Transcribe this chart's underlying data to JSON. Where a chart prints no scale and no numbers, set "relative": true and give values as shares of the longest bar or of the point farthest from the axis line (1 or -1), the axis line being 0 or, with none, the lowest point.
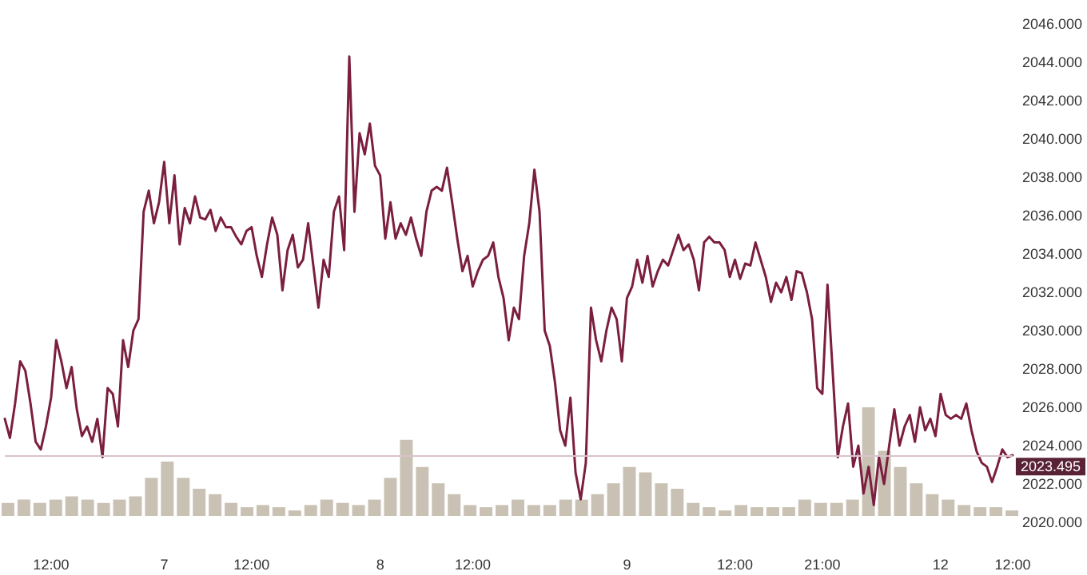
{
  "chart_data": [
    {
      "type": "line",
      "marker": "none",
      "color": "#7b1e3f",
      "categories": [
        null,
        null,
        null,
        null,
        null,
        null,
        null,
        null,
        null,
        "12:00",
        null,
        null,
        null,
        null,
        null,
        null,
        null,
        null,
        null,
        null,
        null,
        null,
        null,
        null,
        null,
        null,
        null,
        null,
        null,
        null,
        null,
        "7",
        null,
        null,
        null,
        null,
        null,
        null,
        null,
        null,
        null,
        null,
        null,
        null,
        null,
        null,
        null,
        null,
        "12:00",
        null,
        null,
        null,
        null,
        null,
        null,
        null,
        null,
        null,
        null,
        null,
        null,
        null,
        null,
        null,
        null,
        null,
        null,
        null,
        null,
        null,
        null,
        null,
        null,
        "8",
        null,
        null,
        null,
        null,
        null,
        null,
        null,
        null,
        null,
        null,
        null,
        null,
        null,
        null,
        null,
        null,
        null,
        "12:00",
        null,
        null,
        null,
        null,
        null,
        null,
        null,
        null,
        null,
        null,
        null,
        null,
        null,
        null,
        null,
        null,
        null,
        null,
        null,
        null,
        null,
        null,
        null,
        null,
        null,
        null,
        null,
        null,
        null,
        "9",
        null,
        null,
        null,
        null,
        null,
        null,
        null,
        null,
        null,
        null,
        null,
        null,
        null,
        null,
        null,
        null,
        null,
        null,
        null,
        null,
        "12:00",
        null,
        null,
        null,
        null,
        null,
        null,
        null,
        null,
        null,
        null,
        null,
        null,
        null,
        null,
        null,
        null,
        "21:00",
        null,
        null,
        null,
        null,
        null,
        null,
        null,
        null,
        null,
        null,
        null,
        null,
        null,
        null,
        null,
        null,
        null,
        null,
        null,
        null,
        null,
        null,
        "12",
        null,
        null,
        null,
        null,
        null,
        null,
        null,
        null,
        null,
        null,
        null,
        null,
        null,
        "12:00"
      ],
      "values": [
        2025.4,
        2024.4,
        2026.2,
        2028.4,
        2027.9,
        2026.2,
        2024.2,
        2023.8,
        2025.0,
        2026.5,
        2029.5,
        2028.4,
        2027.0,
        2028.1,
        2025.9,
        2024.5,
        2025.0,
        2024.2,
        2025.4,
        2023.4,
        2027.0,
        2026.7,
        2025.0,
        2029.5,
        2028.1,
        2030.0,
        2030.6,
        2036.2,
        2037.3,
        2035.6,
        2036.7,
        2038.8,
        2035.6,
        2038.1,
        2034.5,
        2036.4,
        2035.6,
        2037.0,
        2035.9,
        2035.8,
        2036.3,
        2035.2,
        2035.9,
        2035.4,
        2035.4,
        2034.9,
        2034.5,
        2035.2,
        2035.4,
        2033.9,
        2032.8,
        2034.5,
        2035.9,
        2035.0,
        2032.1,
        2034.2,
        2035.0,
        2033.3,
        2033.7,
        2035.6,
        2033.4,
        2031.2,
        2033.7,
        2032.8,
        2036.2,
        2037.0,
        2034.2,
        2044.3,
        2036.2,
        2040.3,
        2039.2,
        2040.8,
        2038.6,
        2038.1,
        2034.8,
        2036.7,
        2034.8,
        2035.6,
        2035.0,
        2035.9,
        2034.8,
        2033.9,
        2036.2,
        2037.3,
        2037.5,
        2037.3,
        2038.5,
        2036.7,
        2034.8,
        2033.1,
        2033.9,
        2032.3,
        2033.1,
        2033.7,
        2033.9,
        2034.6,
        2032.8,
        2031.7,
        2029.5,
        2031.2,
        2030.6,
        2033.9,
        2035.6,
        2038.4,
        2036.2,
        2030.0,
        2029.2,
        2027.3,
        2024.8,
        2024.0,
        2026.5,
        2022.6,
        2021.2,
        2023.1,
        2031.2,
        2029.5,
        2028.4,
        2030.0,
        2031.2,
        2030.6,
        2028.4,
        2031.7,
        2032.3,
        2033.7,
        2032.5,
        2033.9,
        2032.3,
        2033.1,
        2033.7,
        2033.4,
        2034.2,
        2035.0,
        2034.2,
        2034.5,
        2033.7,
        2032.1,
        2034.6,
        2034.9,
        2034.6,
        2034.6,
        2034.2,
        2032.8,
        2033.7,
        2032.7,
        2033.5,
        2033.4,
        2034.6,
        2033.7,
        2032.8,
        2031.5,
        2032.5,
        2032.0,
        2032.8,
        2031.6,
        2033.1,
        2033.0,
        2032.0,
        2030.6,
        2027.0,
        2026.7,
        2032.4,
        2027.9,
        2023.4,
        2025.0,
        2026.2,
        2022.9,
        2024.0,
        2021.5,
        2022.9,
        2020.9,
        2023.4,
        2022.0,
        2024.0,
        2025.9,
        2024.0,
        2025.0,
        2025.6,
        2024.2,
        2026.0,
        2024.8,
        2025.4,
        2024.5,
        2026.7,
        2025.6,
        2025.4,
        2025.6,
        2025.4,
        2026.2,
        2024.8,
        2023.7,
        2023.1,
        2022.9,
        2022.1,
        2022.9,
        2023.8,
        2023.4,
        2023.5
      ],
      "ylim": [
        2020,
        2046
      ],
      "yticks": [
        {
          "value": 2020,
          "label": "2020.000"
        },
        {
          "value": 2022,
          "label": "2022.000"
        },
        {
          "value": 2024,
          "label": "2024.000"
        },
        {
          "value": 2026,
          "label": "2026.000"
        },
        {
          "value": 2028,
          "label": "2028.000"
        },
        {
          "value": 2030,
          "label": "2030.000"
        },
        {
          "value": 2032,
          "label": "2032.000"
        },
        {
          "value": 2034,
          "label": "2034.000"
        },
        {
          "value": 2036,
          "label": "2036.000"
        },
        {
          "value": 2038,
          "label": "2038.000"
        },
        {
          "value": 2040,
          "label": "2040.000"
        },
        {
          "value": 2042,
          "label": "2042.000"
        },
        {
          "value": 2044,
          "label": "2044.000"
        },
        {
          "value": 2046,
          "label": "2046.000"
        }
      ],
      "ref_lines": [
        {
          "axis": "y",
          "value": 2023.495,
          "label": "2023.495",
          "color": "#d9c3cb"
        }
      ]
    },
    {
      "type": "bar",
      "relative": true,
      "color": "#c9c1b3",
      "categories": [
        null,
        null,
        null,
        null,
        null,
        null,
        null,
        null,
        null,
        null,
        null,
        null,
        null,
        null,
        null,
        null,
        null,
        null,
        null,
        null,
        null,
        null,
        null,
        null,
        null,
        null,
        null,
        null,
        null,
        null,
        null,
        null,
        null,
        null,
        null,
        null,
        null,
        null,
        null,
        null,
        null,
        null,
        null,
        null,
        null,
        null,
        null,
        null,
        null,
        null,
        null,
        null,
        null,
        null,
        null,
        null,
        null,
        null,
        null,
        null,
        null,
        null,
        null,
        null
      ],
      "values": [
        0.12,
        0.15,
        0.12,
        0.15,
        0.18,
        0.15,
        0.12,
        0.15,
        0.18,
        0.35,
        0.5,
        0.35,
        0.25,
        0.2,
        0.12,
        0.08,
        0.1,
        0.08,
        0.05,
        0.1,
        0.15,
        0.12,
        0.1,
        0.15,
        0.35,
        0.7,
        0.45,
        0.3,
        0.2,
        0.1,
        0.08,
        0.1,
        0.15,
        0.1,
        0.1,
        0.15,
        0.15,
        0.2,
        0.3,
        0.45,
        0.4,
        0.3,
        0.25,
        0.12,
        0.08,
        0.05,
        0.1,
        0.08,
        0.08,
        0.08,
        0.15,
        0.12,
        0.12,
        0.15,
        1,
        0.6,
        0.45,
        0.3,
        0.2,
        0.15,
        0.1,
        0.08,
        0.08,
        0.05
      ]
    }
  ]
}
